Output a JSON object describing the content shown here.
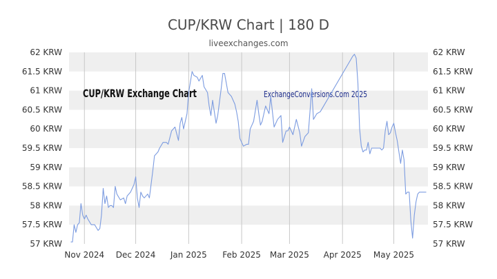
{
  "header": {
    "title": "CUP/KRW Chart | 180 D",
    "subtitle": "liveexchanges.com"
  },
  "overlays": {
    "chart_label": "CUP/KRW Exchange Chart",
    "watermark": "ExchangeConversions.Com 2025"
  },
  "colors": {
    "line": "#7b9be0",
    "band": "#efefef",
    "gridline": "#c8c8c8",
    "axis_text": "#333333",
    "watermark": "#1a2a8a",
    "chart_label": "#111111"
  },
  "chart_data": {
    "type": "line",
    "title": "CUP/KRW Chart | 180 D",
    "subtitle": "liveexchanges.com",
    "xlabel": "",
    "ylabel": "",
    "ylim": [
      57,
      62
    ],
    "yticks": [
      57,
      57.5,
      58,
      58.5,
      59,
      59.5,
      60,
      60.5,
      61,
      61.5,
      62
    ],
    "ytick_labels": [
      "57 KRW",
      "57.5 KRW",
      "58 KRW",
      "58.5 KRW",
      "59 KRW",
      "59.5 KRW",
      "60 KRW",
      "60.5 KRW",
      "61 KRW",
      "61.5 KRW",
      "62 KRW"
    ],
    "xlim": [
      "2024-10-23",
      "2025-05-21"
    ],
    "xticks": [
      "2024-11-01",
      "2024-12-01",
      "2025-01-01",
      "2025-02-01",
      "2025-03-01",
      "2025-04-01",
      "2025-05-01"
    ],
    "xtick_labels": [
      "Nov 2024",
      "Dec 2024",
      "Jan 2025",
      "Feb 2025",
      "Mar 2025",
      "Apr 2025",
      "May 2025"
    ],
    "grid": "alternating horizontal bands, vertical lines at month ticks",
    "series": [
      {
        "x": [
          "2024-10-24",
          "2024-10-25",
          "2024-10-26",
          "2024-10-27",
          "2024-10-28",
          "2024-10-29",
          "2024-10-30",
          "2024-10-31",
          "2024-11-01",
          "2024-11-02",
          "2024-11-03",
          "2024-11-05",
          "2024-11-07",
          "2024-11-09",
          "2024-11-10",
          "2024-11-11",
          "2024-11-12",
          "2024-11-13",
          "2024-11-14",
          "2024-11-15",
          "2024-11-16",
          "2024-11-17",
          "2024-11-18",
          "2024-11-19",
          "2024-11-20",
          "2024-11-22",
          "2024-11-24",
          "2024-11-25",
          "2024-11-26",
          "2024-11-28",
          "2024-11-29",
          "2024-11-30",
          "2024-12-01",
          "2024-12-02",
          "2024-12-03",
          "2024-12-04",
          "2024-12-05",
          "2024-12-06",
          "2024-12-08",
          "2024-12-09",
          "2024-12-11",
          "2024-12-12",
          "2024-12-14",
          "2024-12-15",
          "2024-12-17",
          "2024-12-19",
          "2024-12-20",
          "2024-12-22",
          "2024-12-24",
          "2024-12-26",
          "2024-12-27",
          "2024-12-28",
          "2024-12-29",
          "2024-12-31",
          "2025-01-01",
          "2025-01-03",
          "2025-01-04",
          "2025-01-06",
          "2025-01-07",
          "2025-01-09",
          "2025-01-10",
          "2025-01-12",
          "2025-01-13",
          "2025-01-14",
          "2025-01-15",
          "2025-01-17",
          "2025-01-18",
          "2025-01-20",
          "2025-01-21",
          "2025-01-22",
          "2025-01-24",
          "2025-01-26",
          "2025-01-28",
          "2025-01-29",
          "2025-01-30",
          "2025-01-31",
          "2025-02-02",
          "2025-02-04",
          "2025-02-05",
          "2025-02-06",
          "2025-02-08",
          "2025-02-10",
          "2025-02-11",
          "2025-02-12",
          "2025-02-13",
          "2025-02-15",
          "2025-02-17",
          "2025-02-18",
          "2025-02-20",
          "2025-02-22",
          "2025-02-24",
          "2025-02-25",
          "2025-02-27",
          "2025-02-28",
          "2025-03-01",
          "2025-03-03",
          "2025-03-05",
          "2025-03-07",
          "2025-03-08",
          "2025-03-10",
          "2025-03-12",
          "2025-03-14",
          "2025-03-15",
          "2025-03-17",
          "2025-03-19",
          "2025-04-07",
          "2025-04-08",
          "2025-04-09",
          "2025-04-10",
          "2025-04-11",
          "2025-04-12",
          "2025-04-13",
          "2025-04-14",
          "2025-04-15",
          "2025-04-16",
          "2025-04-17",
          "2025-04-18",
          "2025-04-20",
          "2025-04-22",
          "2025-04-23",
          "2025-04-24",
          "2025-04-25",
          "2025-04-26",
          "2025-04-27",
          "2025-04-28",
          "2025-04-29",
          "2025-04-30",
          "2025-05-01",
          "2025-05-02",
          "2025-05-03",
          "2025-05-04",
          "2025-05-05",
          "2025-05-06",
          "2025-05-07",
          "2025-05-08",
          "2025-05-09",
          "2025-05-10",
          "2025-05-11",
          "2025-05-12",
          "2025-05-13",
          "2025-05-14",
          "2025-05-15",
          "2025-05-16",
          "2025-05-17",
          "2025-05-18",
          "2025-05-19",
          "2025-05-20"
        ],
        "y": [
          57.05,
          57.05,
          57.5,
          57.3,
          57.5,
          57.55,
          58.05,
          57.75,
          57.65,
          57.75,
          57.65,
          57.5,
          57.5,
          57.35,
          57.4,
          57.75,
          58.45,
          58.05,
          58.25,
          57.95,
          58.0,
          58.0,
          57.95,
          58.5,
          58.3,
          58.15,
          58.2,
          58.05,
          58.25,
          58.35,
          58.45,
          58.55,
          58.75,
          58.2,
          57.95,
          58.35,
          58.25,
          58.2,
          58.3,
          58.2,
          58.9,
          59.3,
          59.4,
          59.5,
          59.65,
          59.65,
          59.6,
          59.95,
          60.05,
          59.7,
          60.15,
          60.3,
          60.0,
          60.4,
          60.95,
          61.5,
          61.4,
          61.35,
          61.25,
          61.4,
          61.1,
          60.95,
          60.6,
          60.35,
          60.75,
          60.15,
          60.35,
          61.05,
          61.45,
          61.45,
          60.95,
          60.85,
          60.65,
          60.45,
          60.2,
          59.75,
          59.55,
          59.6,
          59.6,
          60.0,
          60.2,
          60.75,
          60.4,
          60.1,
          60.2,
          60.6,
          60.4,
          60.85,
          60.05,
          60.25,
          60.35,
          59.65,
          59.95,
          59.95,
          60.05,
          59.85,
          60.25,
          59.9,
          59.55,
          59.8,
          59.9,
          61.05,
          60.25,
          60.4,
          60.45,
          61.9,
          61.95,
          61.85,
          61.2,
          60.0,
          59.55,
          59.4,
          59.45,
          59.45,
          59.65,
          59.35,
          59.5,
          59.5,
          59.5,
          59.5,
          59.45,
          59.5,
          59.95,
          60.2,
          59.85,
          59.9,
          60.05,
          60.15,
          59.9,
          59.7,
          59.4,
          59.1,
          59.45,
          59.2,
          58.3,
          58.35,
          58.35,
          57.6,
          57.15,
          57.75,
          58.1,
          58.3,
          58.35,
          58.35,
          58.35,
          58.35,
          58.35
        ]
      }
    ]
  }
}
